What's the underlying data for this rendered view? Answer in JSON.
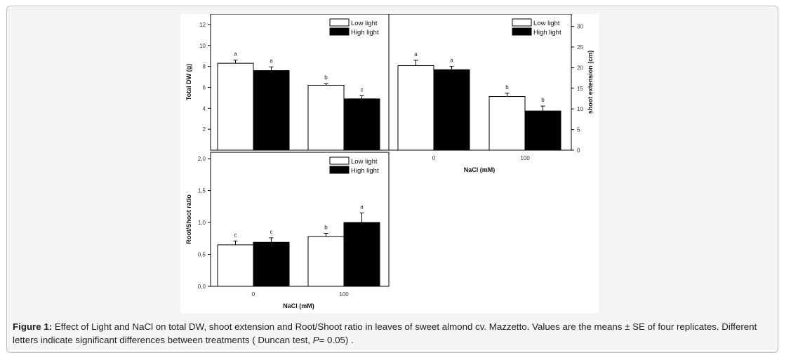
{
  "figure": {
    "caption_label": "Figure 1:",
    "caption_text": " Effect of Light and NaCl on total DW, shoot extension and Root/Shoot ratio in leaves of sweet almond cv. Mazzetto. Values are the means ± SE of four replicates. Different letters indicate significant differences between treatments ( Duncan test, ",
    "caption_p": "P",
    "caption_end": "= 0.05) ."
  },
  "colors": {
    "low_light": "#ffffff",
    "high_light": "#000000",
    "axis": "#000000"
  },
  "chart_data": [
    {
      "type": "bar",
      "ylabel": "Total DW (g)",
      "categories": [
        "0",
        "100"
      ],
      "series": [
        {
          "name": "Low light",
          "values": [
            8.3,
            6.2
          ],
          "errors": [
            0.3,
            0.15
          ],
          "letters": [
            "a",
            "b"
          ]
        },
        {
          "name": "High light",
          "values": [
            7.6,
            4.9
          ],
          "errors": [
            0.35,
            0.3
          ],
          "letters": [
            "a",
            "c"
          ]
        }
      ],
      "ylim": [
        0,
        13
      ],
      "yticks": [
        "2",
        "4",
        "6",
        "8",
        "10",
        "12"
      ],
      "ytick_values": [
        2,
        4,
        6,
        8,
        10,
        12
      ],
      "legend": "top-right"
    },
    {
      "type": "bar",
      "ylabel": "shoot extension (cm)",
      "xlabel": "NaCl (mM)",
      "categories": [
        "0",
        "100"
      ],
      "series": [
        {
          "name": "Low light",
          "values": [
            20.5,
            13.0
          ],
          "errors": [
            1.3,
            0.8
          ],
          "letters": [
            "a",
            "b"
          ]
        },
        {
          "name": "High light",
          "values": [
            19.5,
            9.5
          ],
          "errors": [
            0.8,
            1.2
          ],
          "letters": [
            "a",
            "b"
          ]
        }
      ],
      "ylim": [
        0,
        33
      ],
      "yticks": [
        "0",
        "5",
        "10",
        "15",
        "20",
        "25",
        "30"
      ],
      "ytick_values": [
        0,
        5,
        10,
        15,
        20,
        25,
        30
      ],
      "yaxis_side": "right",
      "legend": "top-right"
    },
    {
      "type": "bar",
      "ylabel": "Root/Shoot ratio",
      "xlabel": "NaCl (mM)",
      "categories": [
        "0",
        "100"
      ],
      "series": [
        {
          "name": "Low light",
          "values": [
            0.65,
            0.78
          ],
          "errors": [
            0.06,
            0.05
          ],
          "letters": [
            "c",
            "b"
          ]
        },
        {
          "name": "High light",
          "values": [
            0.69,
            1.0
          ],
          "errors": [
            0.07,
            0.15
          ],
          "letters": [
            "c",
            "a"
          ]
        }
      ],
      "ylim": [
        0,
        2.1
      ],
      "yticks": [
        "0,0",
        "0,5",
        "1,0",
        "1,5",
        "2,0"
      ],
      "ytick_values": [
        0,
        0.5,
        1.0,
        1.5,
        2.0
      ],
      "legend": "top-right"
    }
  ]
}
